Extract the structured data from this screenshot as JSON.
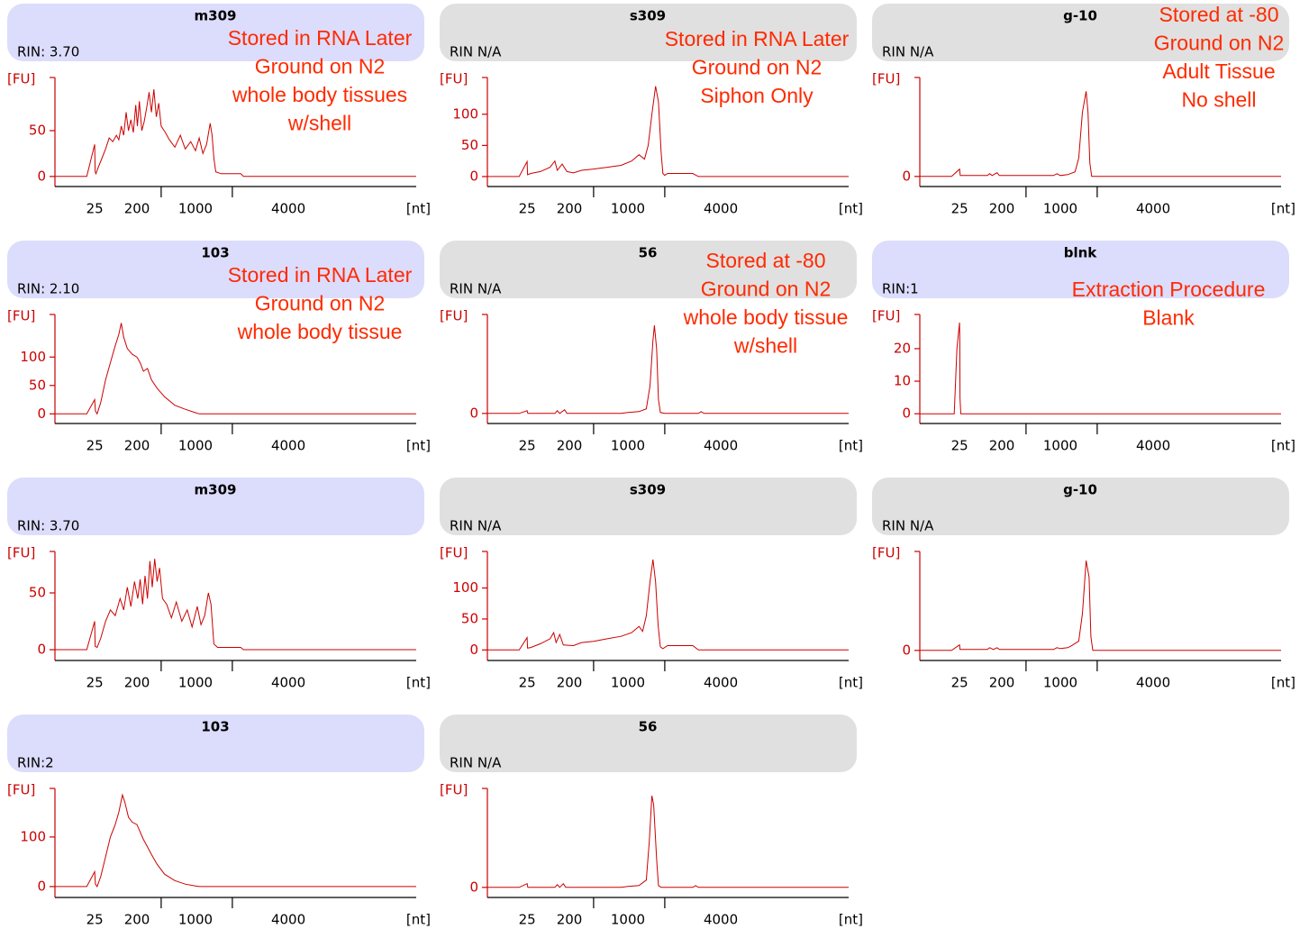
{
  "chart_data": [
    {
      "type": "line",
      "title": "m309",
      "subtitle": "RIN: 3.70",
      "header_color": "#dcdcfc",
      "color": "#cc0000",
      "annotations": [
        "Stored in RNA Later",
        "Ground on N2",
        "whole body tissues",
        "w/shell"
      ],
      "ylabel": "[FU]",
      "xlabel": "[nt]",
      "xlim": [
        10,
        10000
      ],
      "ylim": [
        -11,
        108
      ],
      "yticks": [
        0,
        50
      ],
      "xticks": [
        25,
        200,
        {
          "value": 500,
          "label": null
        },
        1000,
        {
          "value": 2000,
          "label": null
        },
        4000
      ],
      "x": [
        10,
        22,
        25,
        27,
        30,
        40,
        55,
        70,
        85,
        100,
        115,
        125,
        135,
        145,
        155,
        165,
        175,
        185,
        195,
        205,
        230,
        260,
        290,
        320,
        350,
        380,
        410,
        440,
        470,
        500,
        560,
        620,
        700,
        780,
        850,
        930,
        1000,
        1100,
        1200,
        1300,
        1400,
        1450,
        1500,
        1550,
        1700,
        2300,
        2400,
        10000
      ],
      "values": [
        0,
        0,
        35,
        5,
        3,
        10,
        20,
        30,
        42,
        38,
        45,
        40,
        55,
        45,
        70,
        50,
        62,
        48,
        78,
        55,
        82,
        50,
        60,
        75,
        92,
        70,
        95,
        65,
        80,
        55,
        48,
        40,
        32,
        45,
        30,
        38,
        28,
        42,
        25,
        35,
        58,
        45,
        20,
        5,
        3,
        3,
        0,
        0
      ]
    },
    {
      "type": "line",
      "title": "s309",
      "subtitle": "RIN N/A",
      "header_color": "#e0e0e0",
      "color": "#cc0000",
      "annotations": [
        "Stored in RNA Later",
        "Ground on N2",
        "Siphon Only"
      ],
      "ylabel": "[FU]",
      "xlabel": "[nt]",
      "xlim": [
        10,
        10000
      ],
      "ylim": [
        -16,
        159
      ],
      "yticks": [
        0,
        50,
        100
      ],
      "xticks": [
        25,
        200,
        {
          "value": 500,
          "label": null
        },
        1000,
        {
          "value": 2000,
          "label": null
        },
        4000
      ],
      "x": [
        10,
        22,
        25,
        27,
        40,
        80,
        120,
        140,
        150,
        170,
        190,
        250,
        350,
        500,
        700,
        900,
        1100,
        1300,
        1450,
        1550,
        1650,
        1750,
        1830,
        1900,
        1950,
        2000,
        2100,
        3000,
        3200,
        10000
      ],
      "values": [
        0,
        0,
        24,
        3,
        5,
        8,
        15,
        25,
        10,
        20,
        8,
        6,
        10,
        12,
        15,
        18,
        25,
        35,
        28,
        50,
        100,
        145,
        120,
        40,
        5,
        2,
        5,
        5,
        0,
        0
      ]
    },
    {
      "type": "line",
      "title": "g-10",
      "subtitle": "RIN N/A",
      "header_color": "#e0e0e0",
      "color": "#cc0000",
      "annotations": [
        "Stored at -80",
        "Ground on N2",
        "Adult Tissue",
        "No shell"
      ],
      "ylabel": "[FU]",
      "xlabel": "[nt]",
      "xlim": [
        10,
        10000
      ],
      "ylim": [
        -11,
        108
      ],
      "yticks": [
        0
      ],
      "xticks": [
        25,
        200,
        {
          "value": 500,
          "label": null
        },
        1000,
        {
          "value": 2000,
          "label": null
        },
        4000
      ],
      "x": [
        10,
        22,
        25,
        28,
        140,
        150,
        160,
        180,
        190,
        900,
        950,
        1000,
        1200,
        1400,
        1500,
        1600,
        1700,
        1750,
        1800,
        1850,
        10000
      ],
      "values": [
        0,
        0,
        8,
        1,
        1,
        3,
        1,
        4,
        1,
        1,
        3,
        1,
        2,
        5,
        20,
        70,
        93,
        70,
        15,
        0,
        0
      ]
    },
    {
      "type": "line",
      "title": "103",
      "subtitle": "RIN: 2.10",
      "header_color": "#dcdcfc",
      "color": "#cc0000",
      "annotations": [
        "Stored in RNA Later",
        "Ground on N2",
        "whole body tissue"
      ],
      "ylabel": "[FU]",
      "xlabel": "[nt]",
      "xlim": [
        10,
        10000
      ],
      "ylim": [
        -17,
        175
      ],
      "yticks": [
        0,
        50,
        100
      ],
      "xticks": [
        25,
        200,
        {
          "value": 500,
          "label": null
        },
        1000,
        {
          "value": 2000,
          "label": null
        },
        4000
      ],
      "x": [
        10,
        22,
        25,
        28,
        35,
        50,
        70,
        90,
        110,
        125,
        135,
        145,
        160,
        180,
        200,
        240,
        280,
        330,
        380,
        450,
        550,
        700,
        850,
        1000,
        1100,
        10000
      ],
      "values": [
        0,
        0,
        25,
        5,
        0,
        20,
        60,
        90,
        120,
        140,
        160,
        135,
        115,
        105,
        100,
        90,
        75,
        80,
        60,
        45,
        30,
        15,
        8,
        2,
        0,
        0
      ]
    },
    {
      "type": "line",
      "title": "56",
      "subtitle": "RIN N/A",
      "header_color": "#e0e0e0",
      "color": "#cc0000",
      "annotations": [
        "Stored at -80",
        "Ground on N2",
        "whole body tissue",
        "w/shell"
      ],
      "ylabel": "[FU]",
      "xlabel": "[nt]",
      "xlim": [
        10,
        10000
      ],
      "ylim": [
        -11,
        108
      ],
      "yticks": [
        0
      ],
      "xticks": [
        25,
        200,
        {
          "value": 500,
          "label": null
        },
        1000,
        {
          "value": 2000,
          "label": null
        },
        4000
      ],
      "x": [
        10,
        22,
        25,
        28,
        140,
        150,
        160,
        180,
        190,
        900,
        1000,
        1300,
        1500,
        1600,
        1680,
        1720,
        1780,
        1830,
        1880,
        2000,
        3200,
        3300,
        3400,
        10000
      ],
      "values": [
        0,
        0,
        3,
        0,
        0,
        3,
        0,
        4,
        0,
        0,
        1,
        2,
        5,
        30,
        80,
        96,
        70,
        15,
        1,
        0,
        0,
        2,
        0,
        0
      ]
    },
    {
      "type": "line",
      "title": "blnk",
      "subtitle": "RIN:1",
      "header_color": "#dcdcfc",
      "color": "#cc0000",
      "annotations": [
        "Extraction Procedure",
        "Blank"
      ],
      "ylabel": "[FU]",
      "xlabel": "[nt]",
      "xlim": [
        10,
        10000
      ],
      "ylim": [
        -3,
        30.5
      ],
      "yticks": [
        0,
        10,
        20
      ],
      "xticks": [
        25,
        200,
        {
          "value": 500,
          "label": null
        },
        1000,
        {
          "value": 2000,
          "label": null
        },
        4000
      ],
      "x": [
        10,
        23,
        24,
        25,
        26,
        27,
        30,
        10000
      ],
      "values": [
        0,
        0,
        20,
        28,
        22,
        5,
        0,
        0
      ]
    },
    {
      "type": "line",
      "title": "m309",
      "subtitle": "RIN: 3.70",
      "header_color": "#dcdcfc",
      "color": "#cc0000",
      "ylabel": "[FU]",
      "xlabel": "[nt]",
      "xlim": [
        10,
        10000
      ],
      "ylim": [
        -9.5,
        86.5
      ],
      "yticks": [
        0,
        50
      ],
      "xticks": [
        25,
        200,
        {
          "value": 500,
          "label": null
        },
        1000,
        {
          "value": 2000,
          "label": null
        },
        4000
      ],
      "x": [
        10,
        22,
        25,
        27,
        35,
        50,
        70,
        90,
        110,
        130,
        145,
        160,
        175,
        190,
        210,
        240,
        270,
        300,
        330,
        360,
        390,
        420,
        450,
        480,
        520,
        580,
        650,
        720,
        800,
        880,
        950,
        1050,
        1150,
        1250,
        1350,
        1420,
        1500,
        1600,
        2300,
        2400,
        10000
      ],
      "values": [
        0,
        0,
        25,
        3,
        2,
        10,
        25,
        35,
        30,
        45,
        35,
        55,
        38,
        60,
        45,
        62,
        40,
        65,
        45,
        78,
        55,
        80,
        60,
        72,
        45,
        40,
        28,
        42,
        25,
        35,
        20,
        38,
        22,
        30,
        50,
        40,
        5,
        2,
        2,
        0,
        0
      ]
    },
    {
      "type": "line",
      "title": "s309",
      "subtitle": "RIN N/A",
      "header_color": "#e0e0e0",
      "color": "#cc0000",
      "ylabel": "[FU]",
      "xlabel": "[nt]",
      "xlim": [
        10,
        10000
      ],
      "ylim": [
        -17,
        159
      ],
      "yticks": [
        0,
        50,
        100
      ],
      "xticks": [
        25,
        200,
        {
          "value": 500,
          "label": null
        },
        1000,
        {
          "value": 2000,
          "label": null
        },
        4000
      ],
      "x": [
        10,
        22,
        25,
        27,
        40,
        80,
        120,
        135,
        145,
        160,
        175,
        250,
        350,
        500,
        700,
        900,
        1100,
        1300,
        1400,
        1500,
        1600,
        1680,
        1750,
        1820,
        1880,
        1950,
        2100,
        3000,
        3200,
        10000
      ],
      "values": [
        0,
        0,
        20,
        3,
        4,
        10,
        18,
        28,
        12,
        25,
        8,
        7,
        12,
        14,
        18,
        22,
        28,
        38,
        30,
        55,
        110,
        146,
        110,
        40,
        5,
        2,
        7,
        7,
        0,
        0
      ]
    },
    {
      "type": "line",
      "title": "g-10",
      "subtitle": "RIN N/A",
      "header_color": "#e0e0e0",
      "color": "#cc0000",
      "ylabel": "[FU]",
      "xlabel": "[nt]",
      "xlim": [
        10,
        10000
      ],
      "ylim": [
        -11,
        108
      ],
      "yticks": [
        0
      ],
      "xticks": [
        25,
        200,
        {
          "value": 500,
          "label": null
        },
        1000,
        {
          "value": 2000,
          "label": null
        },
        4000
      ],
      "x": [
        10,
        22,
        25,
        27,
        140,
        150,
        165,
        180,
        190,
        900,
        950,
        1000,
        1200,
        1300,
        1500,
        1600,
        1700,
        1780,
        1830,
        1880,
        10000
      ],
      "values": [
        0,
        0,
        6,
        1,
        1,
        3,
        1,
        3,
        1,
        1,
        3,
        2,
        3,
        5,
        10,
        40,
        98,
        80,
        15,
        0,
        0
      ]
    },
    {
      "type": "line",
      "title": "103",
      "subtitle": "RIN:2",
      "header_color": "#dcdcfc",
      "color": "#cc0000",
      "ylabel": "[FU]",
      "xlabel": "[nt]",
      "xlim": [
        10,
        10000
      ],
      "ylim": [
        -22,
        198
      ],
      "yticks": [
        0,
        100
      ],
      "xticks": [
        25,
        200,
        {
          "value": 500,
          "label": null
        },
        1000,
        {
          "value": 2000,
          "label": null
        },
        4000
      ],
      "x": [
        10,
        22,
        25,
        28,
        35,
        50,
        70,
        90,
        110,
        125,
        140,
        150,
        165,
        180,
        200,
        240,
        280,
        330,
        380,
        450,
        550,
        700,
        850,
        1000,
        1100,
        10000
      ],
      "values": [
        0,
        0,
        30,
        5,
        0,
        20,
        60,
        100,
        125,
        150,
        185,
        170,
        140,
        130,
        125,
        110,
        95,
        80,
        65,
        45,
        25,
        12,
        5,
        1,
        0,
        0
      ]
    },
    {
      "type": "line",
      "title": "56",
      "subtitle": "RIN N/A",
      "header_color": "#e0e0e0",
      "color": "#cc0000",
      "ylabel": "[FU]",
      "xlabel": "[nt]",
      "xlim": [
        10,
        10000
      ],
      "ylim": [
        -11,
        108
      ],
      "yticks": [
        0
      ],
      "xticks": [
        25,
        200,
        {
          "value": 500,
          "label": null
        },
        1000,
        {
          "value": 2000,
          "label": null
        },
        4000
      ],
      "x": [
        10,
        22,
        25,
        28,
        140,
        150,
        160,
        175,
        185,
        900,
        1000,
        1300,
        1500,
        1580,
        1650,
        1700,
        1780,
        1830,
        1900,
        3000,
        3100,
        3200,
        10000
      ],
      "values": [
        0,
        0,
        4,
        0,
        0,
        3,
        0,
        4,
        0,
        0,
        1,
        2,
        8,
        50,
        100,
        90,
        30,
        2,
        0,
        0,
        2,
        0,
        0
      ]
    }
  ]
}
